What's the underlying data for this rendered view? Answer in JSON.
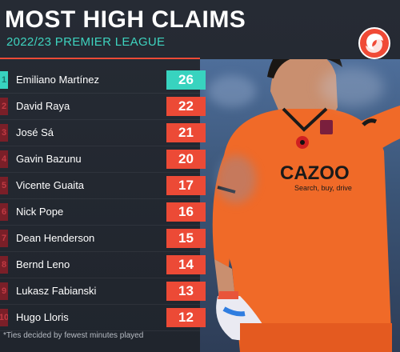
{
  "header": {
    "title": "MOST HIGH CLAIMS",
    "subtitle": "2022/23 PREMIER LEAGUE",
    "logo_icon": "brand-swirl-logo"
  },
  "colors": {
    "accent_red": "#ec4a36",
    "accent_teal": "#38d3bf",
    "background": "#20252d"
  },
  "rows": [
    {
      "rank": "1",
      "name": "Emiliano Martínez",
      "value": "26"
    },
    {
      "rank": "2",
      "name": "David Raya",
      "value": "22"
    },
    {
      "rank": "3",
      "name": "José Sá",
      "value": "21"
    },
    {
      "rank": "4",
      "name": "Gavin Bazunu",
      "value": "20"
    },
    {
      "rank": "5",
      "name": "Vicente Guaita",
      "value": "17"
    },
    {
      "rank": "6",
      "name": "Nick Pope",
      "value": "16"
    },
    {
      "rank": "7",
      "name": "Dean Henderson",
      "value": "15"
    },
    {
      "rank": "8",
      "name": "Bernd Leno",
      "value": "14"
    },
    {
      "rank": "9",
      "name": "Lukasz Fabianski",
      "value": "13"
    },
    {
      "rank": "10",
      "name": "Hugo Lloris",
      "value": "12"
    }
  ],
  "photo": {
    "shirt_text": "CAZOO",
    "shirt_subtext": "Search, buy, drive"
  },
  "footnote": "*Ties decided by fewest minutes played"
}
